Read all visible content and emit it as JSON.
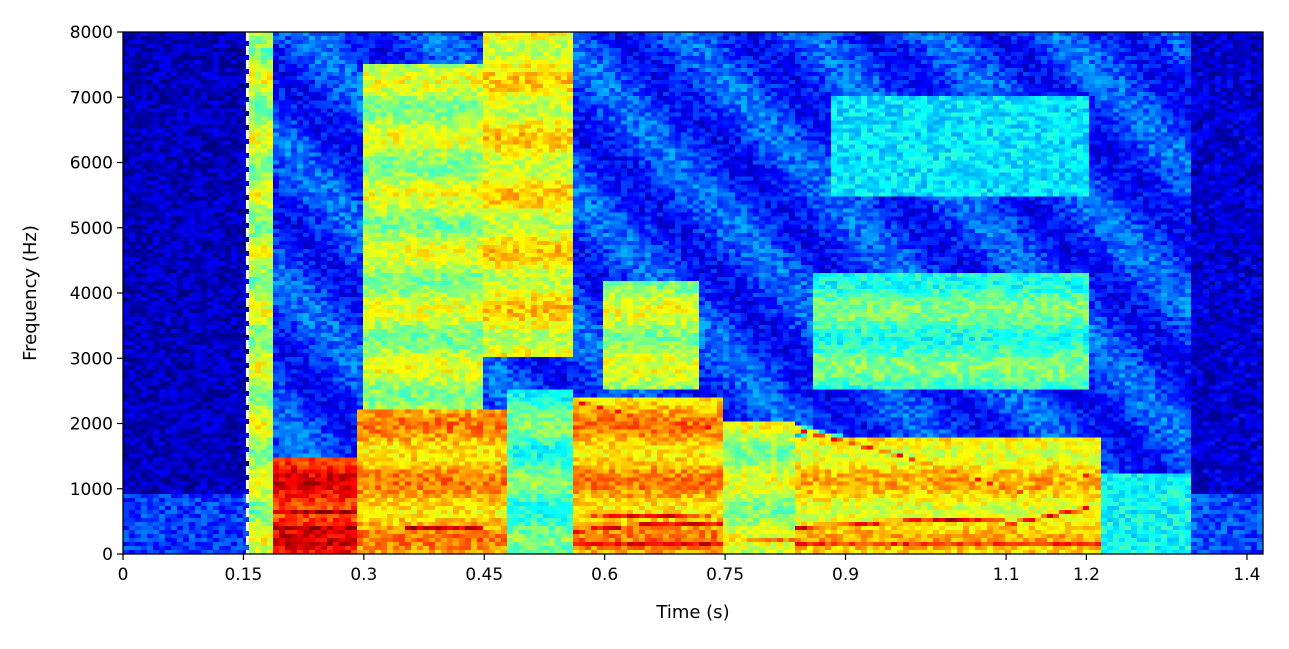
{
  "chart_data": {
    "type": "heatmap",
    "title": "",
    "xlabel": "Time (s)",
    "ylabel": "Frequency (Hz)",
    "xlim": [
      0,
      1.42
    ],
    "ylim": [
      0,
      8000
    ],
    "x_ticks": [
      0,
      0.15,
      0.3,
      0.45,
      0.6,
      0.75,
      0.9,
      1.1,
      1.2,
      1.4
    ],
    "x_tick_labels": [
      "0",
      "0.15",
      "0.3",
      "0.45",
      "0.6",
      "0.75",
      "0.9",
      "1.1",
      "1.2",
      "1.4"
    ],
    "y_ticks": [
      0,
      1000,
      2000,
      3000,
      4000,
      5000,
      6000,
      7000,
      8000
    ],
    "y_tick_labels": [
      "0",
      "1000",
      "2000",
      "3000",
      "4000",
      "5000",
      "6000",
      "7000",
      "8000"
    ],
    "colormap": "jet",
    "colorbar": false,
    "grid": false,
    "annotations": [
      {
        "type": "vertical-dashed-line",
        "x": 0.155,
        "color": "#ffffff"
      }
    ],
    "silence_regions": [
      {
        "t_start": 0.0,
        "t_end": 0.155,
        "level": 0.06
      },
      {
        "t_start": 1.33,
        "t_end": 1.42,
        "level": 0.08
      }
    ],
    "energy_regions": [
      {
        "t_start": 0.155,
        "t_end": 0.185,
        "f_low": 0,
        "f_high": 8000,
        "level": 0.55
      },
      {
        "t_start": 0.185,
        "t_end": 0.29,
        "f_low": 0,
        "f_high": 1500,
        "level": 0.85
      },
      {
        "t_start": 0.29,
        "t_end": 0.48,
        "f_low": 0,
        "f_high": 2200,
        "level": 0.7
      },
      {
        "t_start": 0.3,
        "t_end": 0.45,
        "f_low": 2000,
        "f_high": 7500,
        "level": 0.55
      },
      {
        "t_start": 0.45,
        "t_end": 0.56,
        "f_low": 3000,
        "f_high": 8000,
        "level": 0.62
      },
      {
        "t_start": 0.48,
        "t_end": 0.56,
        "f_low": 0,
        "f_high": 2500,
        "level": 0.45
      },
      {
        "t_start": 0.56,
        "t_end": 0.75,
        "f_low": 0,
        "f_high": 2400,
        "level": 0.7
      },
      {
        "t_start": 0.6,
        "t_end": 0.72,
        "f_low": 2500,
        "f_high": 4200,
        "level": 0.55
      },
      {
        "t_start": 0.75,
        "t_end": 0.84,
        "f_low": 0,
        "f_high": 2000,
        "level": 0.55
      },
      {
        "t_start": 0.84,
        "t_end": 1.22,
        "f_low": 0,
        "f_high": 1800,
        "level": 0.65
      },
      {
        "t_start": 0.86,
        "t_end": 1.2,
        "f_low": 2500,
        "f_high": 4300,
        "level": 0.45
      },
      {
        "t_start": 0.88,
        "t_end": 1.2,
        "f_low": 5500,
        "f_high": 7000,
        "level": 0.35
      },
      {
        "t_start": 1.22,
        "t_end": 1.33,
        "f_low": 0,
        "f_high": 1200,
        "level": 0.38
      }
    ],
    "formant_tracks": [
      {
        "points": [
          [
            0.185,
            150
          ],
          [
            0.29,
            150
          ]
        ],
        "level": 0.95
      },
      {
        "points": [
          [
            0.185,
            400
          ],
          [
            0.29,
            400
          ]
        ],
        "level": 0.95
      },
      {
        "points": [
          [
            0.185,
            650
          ],
          [
            0.29,
            650
          ]
        ],
        "level": 0.97
      },
      {
        "points": [
          [
            0.185,
            900
          ],
          [
            0.29,
            900
          ]
        ],
        "level": 0.92
      },
      {
        "points": [
          [
            0.185,
            1150
          ],
          [
            0.29,
            1150
          ]
        ],
        "level": 0.9
      },
      {
        "points": [
          [
            0.185,
            1350
          ],
          [
            0.29,
            1350
          ]
        ],
        "level": 0.88
      },
      {
        "points": [
          [
            0.35,
            400
          ],
          [
            0.45,
            400
          ]
        ],
        "level": 0.92
      },
      {
        "points": [
          [
            0.35,
            250
          ],
          [
            0.45,
            250
          ]
        ],
        "level": 0.9
      },
      {
        "points": [
          [
            0.36,
            1800
          ],
          [
            0.43,
            2000
          ]
        ],
        "level": 0.8
      },
      {
        "points": [
          [
            0.56,
            150
          ],
          [
            0.75,
            150
          ]
        ],
        "level": 0.92
      },
      {
        "points": [
          [
            0.56,
            350
          ],
          [
            0.65,
            450
          ],
          [
            0.75,
            450
          ]
        ],
        "level": 0.97
      },
      {
        "points": [
          [
            0.56,
            550
          ],
          [
            0.65,
            600
          ],
          [
            0.75,
            550
          ]
        ],
        "level": 0.9
      },
      {
        "points": [
          [
            0.56,
            2350
          ],
          [
            0.66,
            2050
          ],
          [
            0.75,
            1900
          ]
        ],
        "level": 0.88
      },
      {
        "points": [
          [
            0.75,
            250
          ],
          [
            0.84,
            200
          ]
        ],
        "level": 0.8
      },
      {
        "points": [
          [
            0.84,
            400
          ],
          [
            0.97,
            500
          ],
          [
            1.1,
            550
          ]
        ],
        "level": 0.93
      },
      {
        "points": [
          [
            0.84,
            1900
          ],
          [
            0.97,
            1500
          ],
          [
            1.1,
            1000
          ]
        ],
        "level": 0.85
      },
      {
        "points": [
          [
            1.1,
            450
          ],
          [
            1.2,
            700
          ]
        ],
        "level": 0.9
      },
      {
        "points": [
          [
            1.1,
            900
          ],
          [
            1.2,
            1200
          ]
        ],
        "level": 0.8
      },
      {
        "points": [
          [
            0.84,
            150
          ],
          [
            1.22,
            150
          ]
        ],
        "level": 0.85
      }
    ]
  }
}
